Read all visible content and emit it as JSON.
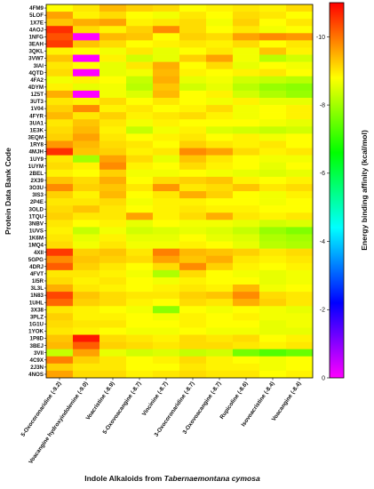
{
  "chart_data": {
    "type": "heatmap",
    "ylabel": "Protein Data Bank Code",
    "xlabel_prefix": "Indole Alkaloids from ",
    "xlabel_italic": "Tabernaemontana cymosa",
    "colorbar_label": "Energy binding affinity (kcal/mol)",
    "colorbar_range": [
      0,
      -11
    ],
    "colorbar_ticks": [
      "-10",
      "-8",
      "-6",
      "-4",
      "-2",
      "0"
    ],
    "colorbar_tick_values": [
      -10,
      -8,
      -6,
      -4,
      -2,
      0
    ],
    "colormap": [
      "#ff00ff",
      "#0000ff",
      "#00ffff",
      "#00ff00",
      "#ffff00",
      "#ff0000"
    ],
    "x": [
      "5-Oxocoronaridine (-9.2)",
      "Voacangine hydroxyindolenine (-9.0)",
      "Voacristine (-8.9)",
      "5-Oxovoacangine (-8.7)",
      "Vincinine (-8.7)",
      "3-Oxocoronaridine (-8.7)",
      "3-Oxovoacangine (-8.7)",
      "Rupicoline (-8.6)",
      "Isovoacristine (-8.4)",
      "Voacangine (-8.4)"
    ],
    "y": [
      "4FM9",
      "5LOF",
      "1X7E",
      "4AOJ",
      "1NFG",
      "3EAH",
      "3QKL",
      "3VW7",
      "3IAI",
      "4QTD",
      "4FA2",
      "4DYM",
      "1Z5T",
      "3UT3",
      "1V04",
      "4FYR",
      "3UA1",
      "1E3K",
      "3EQM",
      "1RY8",
      "4MJH",
      "1UY9",
      "1UYM",
      "2BEL",
      "2X39",
      "3O3U",
      "3IS3",
      "2P4E",
      "3OLD",
      "1TQU",
      "3NBV",
      "1UVS",
      "1K6M",
      "1MQ4",
      "4XII",
      "5GPG",
      "4DRJ",
      "4FVT",
      "1I5R",
      "3L3L",
      "1N83",
      "1UHL",
      "3X38",
      "3PLZ",
      "1G1U",
      "1YOK",
      "1P8D",
      "3BEJ",
      "3VII",
      "4C9X",
      "2J3N",
      "4NOS"
    ],
    "values": [
      [
        -8.8,
        -9.0,
        -9.4,
        -9.2,
        -9.1,
        -8.8,
        -8.9,
        -9.0,
        -8.9,
        -9.1
      ],
      [
        -9.6,
        -8.9,
        -9.1,
        -8.8,
        -8.7,
        -9.0,
        -8.8,
        -9.1,
        -9.0,
        -8.8
      ],
      [
        -9.3,
        -9.5,
        -9.6,
        -8.9,
        -9.0,
        -9.1,
        -8.7,
        -9.2,
        -8.8,
        -9.0
      ],
      [
        -10.6,
        -9.1,
        -8.9,
        -9.2,
        -9.8,
        -9.1,
        -8.8,
        -9.0,
        -8.7,
        -8.8
      ],
      [
        -10.3,
        0.0,
        -9.4,
        -9.3,
        -8.8,
        -9.2,
        -9.1,
        -9.6,
        -9.8,
        -9.7
      ],
      [
        -10.5,
        -9.3,
        -9.1,
        -8.8,
        -8.9,
        -9.0,
        -8.9,
        -9.1,
        -8.8,
        -9.0
      ],
      [
        -8.9,
        -8.8,
        -8.7,
        -9.0,
        -8.6,
        -8.8,
        -9.0,
        -8.7,
        -9.3,
        -8.9
      ],
      [
        -9.3,
        0.0,
        -8.9,
        -8.4,
        -8.6,
        -9.2,
        -9.6,
        -8.7,
        -8.2,
        -8.4
      ],
      [
        -9.0,
        -8.8,
        -8.6,
        -9.0,
        -9.5,
        -8.8,
        -9.1,
        -8.6,
        -8.8,
        -8.7
      ],
      [
        -9.1,
        0.0,
        -8.6,
        -8.7,
        -9.4,
        -8.9,
        -8.8,
        -8.9,
        -9.0,
        -8.8
      ],
      [
        -8.7,
        -8.9,
        -8.8,
        -8.3,
        -9.5,
        -8.6,
        -8.7,
        -8.4,
        -8.3,
        -8.2
      ],
      [
        -8.9,
        -8.6,
        -8.7,
        -8.2,
        -9.3,
        -8.4,
        -8.6,
        -8.2,
        -7.9,
        -7.8
      ],
      [
        -9.5,
        0.0,
        -8.7,
        -8.5,
        -9.4,
        -8.8,
        -8.9,
        -8.4,
        -8.1,
        -7.9
      ],
      [
        -9.0,
        -8.9,
        -9.1,
        -8.8,
        -9.0,
        -8.8,
        -8.7,
        -8.9,
        -8.6,
        -8.6
      ],
      [
        -9.2,
        -9.8,
        -8.9,
        -9.0,
        -8.8,
        -8.9,
        -9.1,
        -8.7,
        -8.8,
        -8.9
      ],
      [
        -9.4,
        -9.0,
        -9.2,
        -8.9,
        -9.0,
        -9.1,
        -8.9,
        -8.7,
        -8.8,
        -8.9
      ],
      [
        -9.0,
        -9.3,
        -9.0,
        -8.7,
        -8.9,
        -8.8,
        -8.8,
        -8.8,
        -8.7,
        -8.6
      ],
      [
        -9.1,
        -9.4,
        -8.9,
        -8.3,
        -8.7,
        -8.9,
        -8.5,
        -8.4,
        -8.3,
        -8.4
      ],
      [
        -9.2,
        -9.6,
        -9.0,
        -8.8,
        -8.9,
        -9.0,
        -8.8,
        -8.9,
        -8.7,
        -8.8
      ],
      [
        -9.7,
        -9.4,
        -9.1,
        -9.0,
        -8.8,
        -9.2,
        -9.0,
        -8.9,
        -9.0,
        -8.8
      ],
      [
        -10.6,
        -9.3,
        -9.2,
        -8.9,
        -9.0,
        -9.8,
        -9.6,
        -9.1,
        -8.9,
        -9.0
      ],
      [
        -9.0,
        -8.0,
        -9.6,
        -9.1,
        -8.6,
        -9.3,
        -9.0,
        -8.8,
        -8.7,
        -8.7
      ],
      [
        -9.1,
        -8.9,
        -9.8,
        -8.9,
        -8.8,
        -9.1,
        -8.9,
        -8.8,
        -8.6,
        -8.8
      ],
      [
        -8.9,
        -8.8,
        -9.2,
        -8.7,
        -8.7,
        -8.8,
        -8.7,
        -8.6,
        -8.5,
        -8.6
      ],
      [
        -9.3,
        -9.1,
        -9.5,
        -8.8,
        -9.1,
        -9.2,
        -9.3,
        -8.9,
        -8.8,
        -8.9
      ],
      [
        -9.8,
        -9.2,
        -9.3,
        -9.0,
        -9.7,
        -9.0,
        -9.1,
        -9.3,
        -9.0,
        -9.1
      ],
      [
        -9.2,
        -8.9,
        -9.4,
        -8.8,
        -9.0,
        -9.5,
        -9.2,
        -8.8,
        -8.7,
        -8.9
      ],
      [
        -9.0,
        -9.0,
        -9.1,
        -8.7,
        -8.9,
        -8.9,
        -8.8,
        -8.8,
        -8.7,
        -8.8
      ],
      [
        -9.1,
        -9.3,
        -9.0,
        -8.8,
        -8.9,
        -9.0,
        -8.9,
        -8.9,
        -8.8,
        -8.8
      ],
      [
        -9.2,
        -9.0,
        -9.0,
        -9.6,
        -8.9,
        -9.1,
        -9.5,
        -9.0,
        -8.9,
        -9.0
      ],
      [
        -9.0,
        -8.8,
        -8.9,
        -8.6,
        -8.8,
        -8.7,
        -8.7,
        -8.6,
        -8.4,
        -8.5
      ],
      [
        -8.9,
        -8.3,
        -8.7,
        -8.4,
        -8.5,
        -8.6,
        -8.5,
        -8.3,
        -7.9,
        -7.7
      ],
      [
        -9.0,
        -8.6,
        -8.9,
        -8.6,
        -8.6,
        -8.8,
        -8.6,
        -8.5,
        -8.1,
        -8.0
      ],
      [
        -9.1,
        -8.7,
        -9.0,
        -8.7,
        -8.7,
        -8.9,
        -8.8,
        -8.6,
        -8.2,
        -8.1
      ],
      [
        -10.5,
        -9.2,
        -9.3,
        -9.0,
        -9.9,
        -9.4,
        -9.3,
        -9.2,
        -9.0,
        -9.1
      ],
      [
        -9.8,
        -9.3,
        -9.2,
        -9.1,
        -9.6,
        -9.3,
        -9.5,
        -9.0,
        -8.9,
        -9.0
      ],
      [
        -10.2,
        -9.2,
        -9.0,
        -8.8,
        -9.1,
        -9.8,
        -9.2,
        -8.9,
        -8.8,
        -8.9
      ],
      [
        -9.0,
        -9.0,
        -8.9,
        -8.7,
        -8.1,
        -9.1,
        -8.8,
        -8.7,
        -8.6,
        -8.7
      ],
      [
        -9.1,
        -8.9,
        -9.0,
        -8.8,
        -8.7,
        -8.9,
        -8.8,
        -8.8,
        -8.6,
        -8.7
      ],
      [
        -9.5,
        -9.0,
        -8.9,
        -8.8,
        -8.9,
        -9.0,
        -8.9,
        -9.4,
        -8.7,
        -8.8
      ],
      [
        -10.4,
        -9.3,
        -9.1,
        -9.0,
        -9.0,
        -9.2,
        -9.3,
        -9.8,
        -9.1,
        -9.0
      ],
      [
        -10.1,
        -9.2,
        -9.1,
        -8.9,
        -8.8,
        -9.1,
        -9.0,
        -9.5,
        -9.2,
        -9.0
      ],
      [
        -9.0,
        -8.9,
        -8.8,
        -8.7,
        -7.8,
        -8.8,
        -8.7,
        -8.8,
        -8.7,
        -8.6
      ],
      [
        -9.2,
        -8.9,
        -8.9,
        -8.8,
        -8.7,
        -8.9,
        -8.8,
        -8.9,
        -8.7,
        -8.7
      ],
      [
        -9.1,
        -9.0,
        -9.0,
        -8.8,
        -8.8,
        -8.9,
        -8.8,
        -8.8,
        -8.6,
        -8.7
      ],
      [
        -9.0,
        -8.9,
        -8.8,
        -8.7,
        -8.7,
        -8.8,
        -8.7,
        -8.7,
        -8.6,
        -8.6
      ],
      [
        -9.3,
        -10.8,
        -9.1,
        -9.0,
        -8.9,
        -9.1,
        -9.0,
        -9.1,
        -8.8,
        -8.9
      ],
      [
        -9.4,
        -10.2,
        -9.2,
        -9.1,
        -9.0,
        -9.1,
        -9.1,
        -9.0,
        -8.9,
        -9.0
      ],
      [
        -8.3,
        -9.6,
        -8.6,
        -8.4,
        -8.5,
        -8.3,
        -8.4,
        -7.6,
        -7.3,
        -7.5
      ],
      [
        -9.9,
        -9.2,
        -9.0,
        -8.8,
        -8.9,
        -9.1,
        -8.9,
        -8.8,
        -8.7,
        -8.8
      ],
      [
        -9.2,
        -9.0,
        -9.0,
        -8.8,
        -8.8,
        -9.0,
        -8.9,
        -8.9,
        -8.7,
        -8.8
      ],
      [
        -9.6,
        -9.1,
        -9.1,
        -8.9,
        -9.0,
        -9.1,
        -9.0,
        -9.0,
        -8.8,
        -8.9
      ]
    ]
  }
}
